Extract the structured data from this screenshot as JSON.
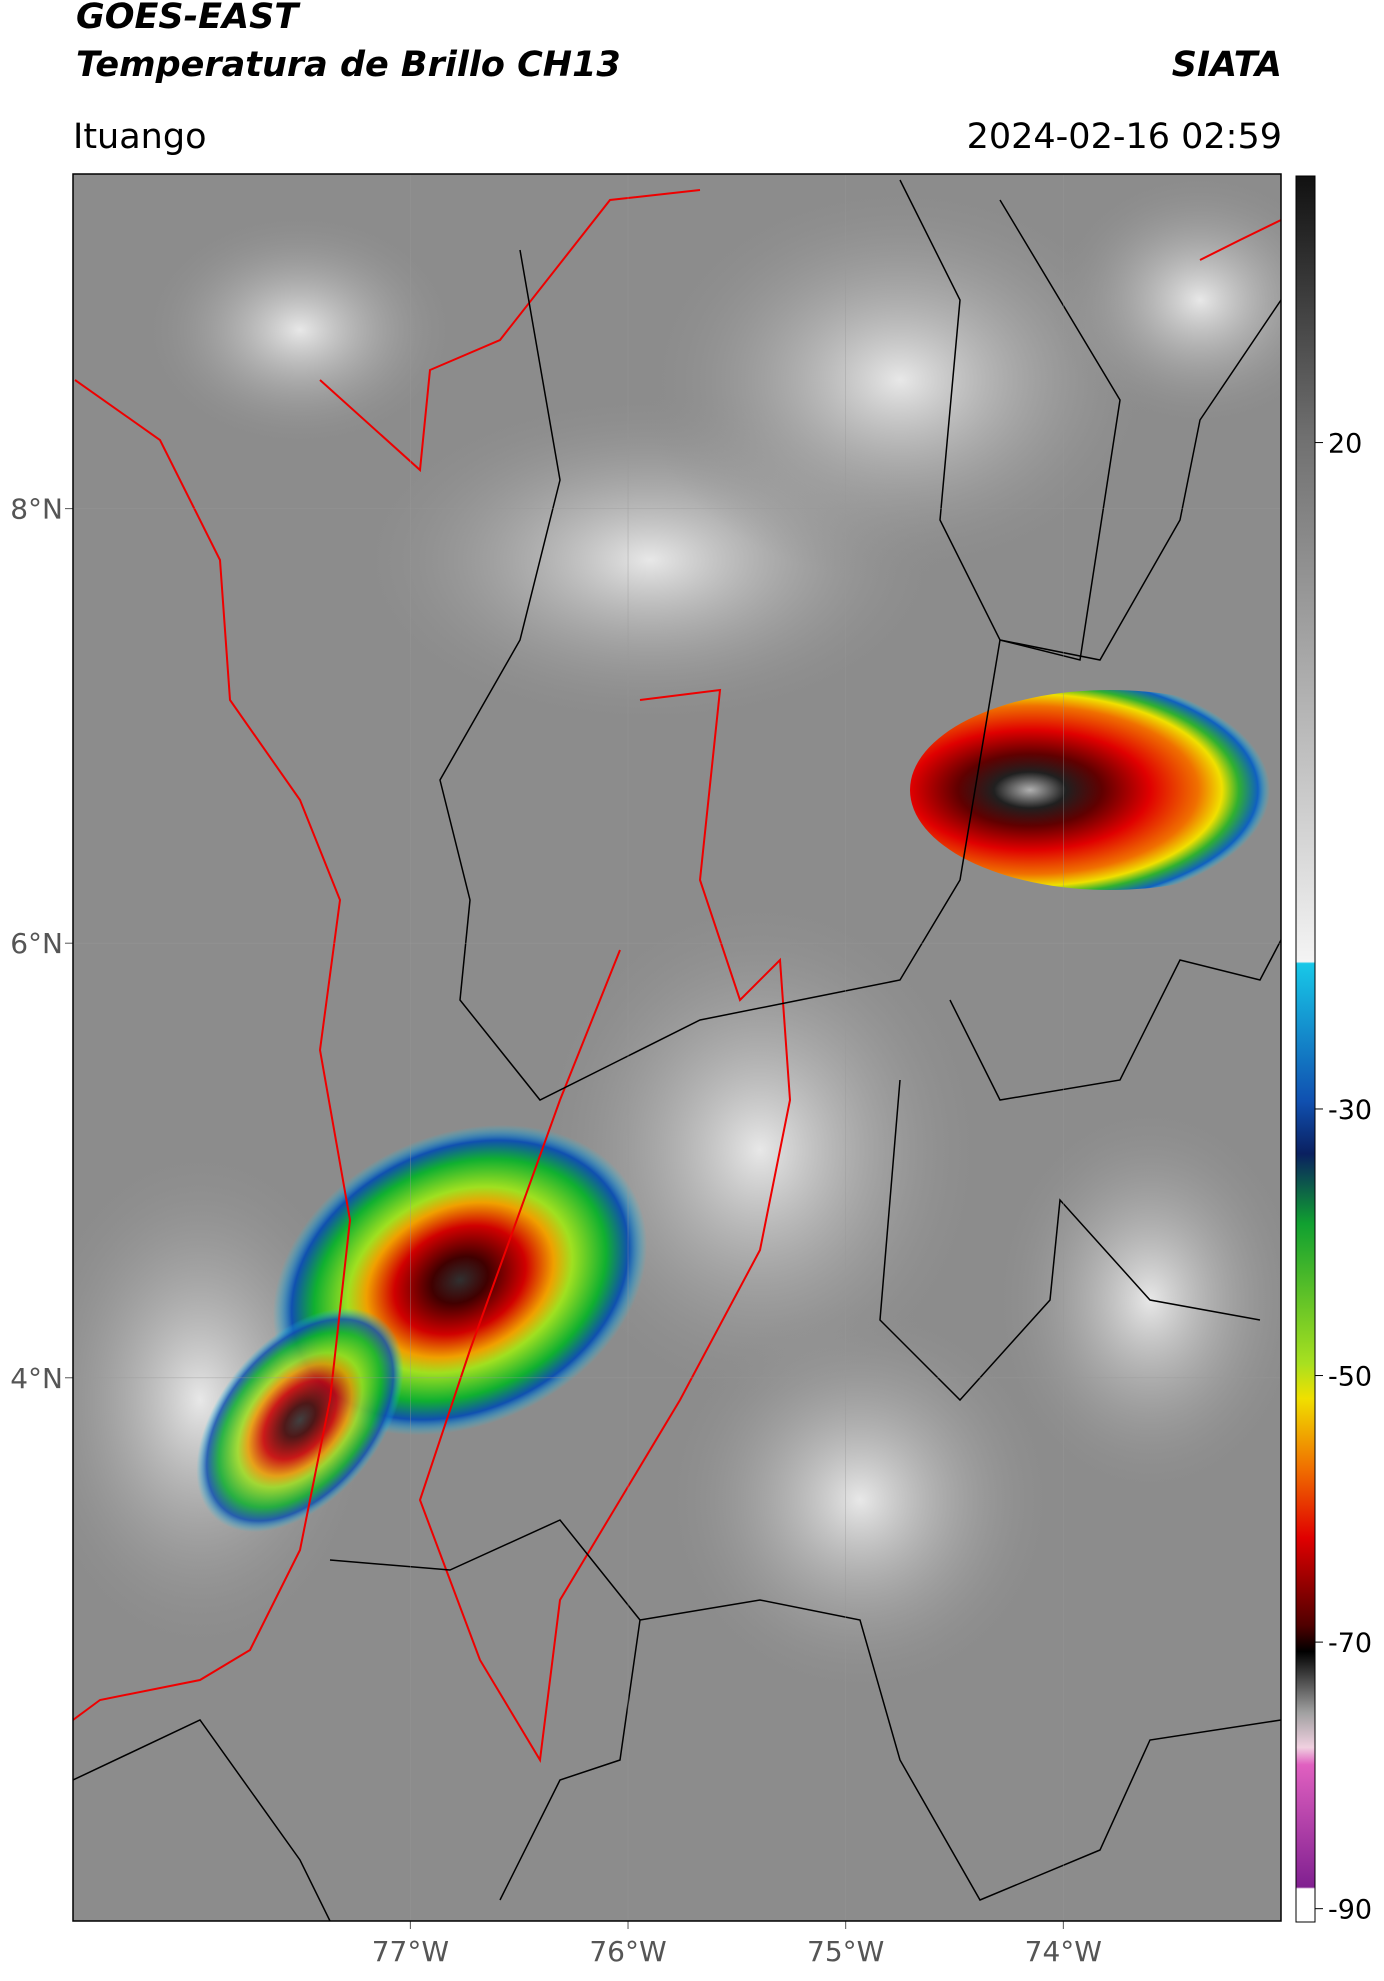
{
  "header": {
    "title": "GOES-EAST",
    "subtitle": "Temperatura de Brillo CH13",
    "brand": "SIATA",
    "location": "Ituango",
    "datetime": "2024-02-16 02:59"
  },
  "map": {
    "xlim": [
      -78.55,
      -73.0
    ],
    "ylim": [
      1.5,
      9.54
    ],
    "xticks": [
      {
        "value": -77,
        "label": "77°W"
      },
      {
        "value": -76,
        "label": "76°W"
      },
      {
        "value": -75,
        "label": "75°W"
      },
      {
        "value": -74,
        "label": "74°W"
      }
    ],
    "yticks": [
      {
        "value": 4,
        "label": "4°N"
      },
      {
        "value": 6,
        "label": "6°N"
      },
      {
        "value": 8,
        "label": "8°N"
      }
    ]
  },
  "colorbar": {
    "lim": [
      -91,
      40
    ],
    "ticks": [
      20,
      -30,
      -50,
      -70,
      -90
    ]
  }
}
